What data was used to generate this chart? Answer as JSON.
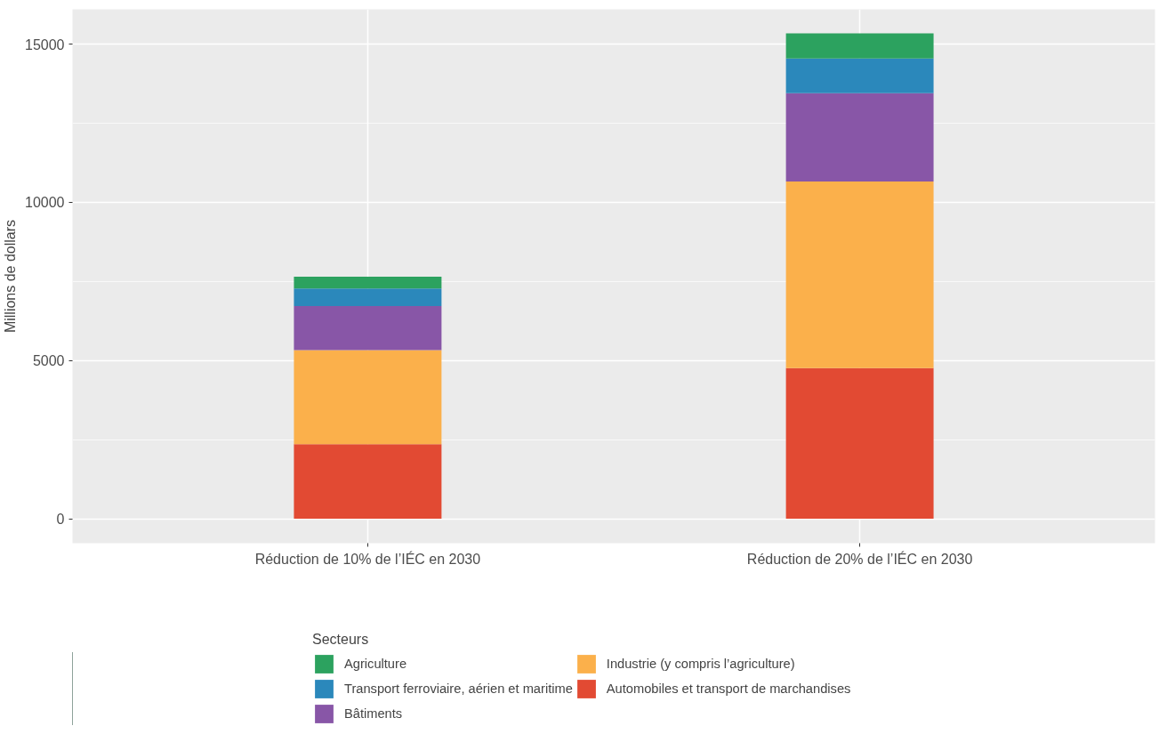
{
  "chart_data": {
    "type": "bar",
    "stacked": true,
    "ylabel": "Millions de dollars",
    "legend_title": "Secteurs",
    "categories": [
      "Réduction de 10% de l’IÉC en 2030",
      "Réduction de 20% de l’IÉC en 2030"
    ],
    "series": [
      {
        "name": "Automobiles et transport de marchandises",
        "color": "#e24a33",
        "values": [
          2360,
          4760
        ]
      },
      {
        "name": "Industrie (y compris l’agriculture)",
        "color": "#fbb04b",
        "values": [
          2970,
          5900
        ]
      },
      {
        "name": "Bâtiments",
        "color": "#8856a7",
        "values": [
          1390,
          2790
        ]
      },
      {
        "name": "Transport ferroviaire, aérien et maritime",
        "color": "#2b88bb",
        "values": [
          560,
          1100
        ]
      },
      {
        "name": "Agriculture",
        "color": "#2ca25f",
        "values": [
          370,
          790
        ]
      }
    ],
    "ylim": [
      -770,
      16100
    ],
    "yticks": [
      0,
      5000,
      10000,
      15000
    ],
    "grid": true,
    "legend": "bottom"
  }
}
